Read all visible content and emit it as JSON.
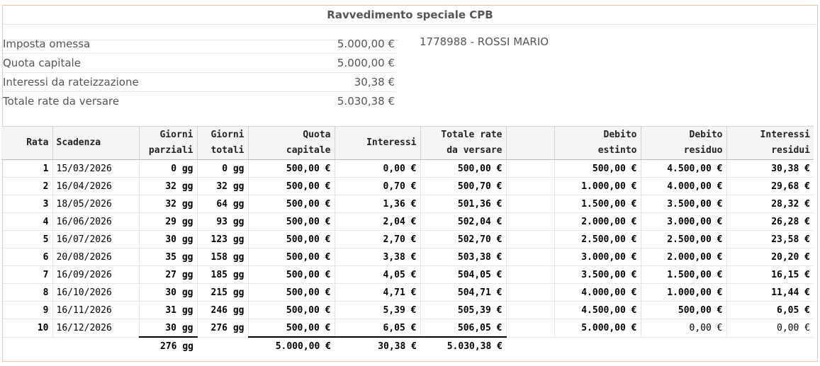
{
  "title": "Ravvedimento speciale CPB",
  "summary": [
    {
      "label": "Imposta omessa",
      "value": "5.000,00 €"
    },
    {
      "label": "Quota capitale",
      "value": "5.000,00 €"
    },
    {
      "label": "Interessi da rateizzazione",
      "value": "30,38 €"
    },
    {
      "label": "Totale rate da versare",
      "value": "5.030,38 €"
    }
  ],
  "taxpayer": "1778988 - ROSSI MARIO",
  "columns": {
    "rata": "Rata",
    "scadenza": "Scadenza",
    "giorni_parziali": [
      "Giorni",
      "parziali"
    ],
    "giorni_totali": [
      "Giorni",
      "totali"
    ],
    "quota_capitale": [
      "Quota",
      "capitale"
    ],
    "interessi": "Interessi",
    "totale_rate": [
      "Totale rate",
      "da versare"
    ],
    "debito_estinto": [
      "Debito",
      "estinto"
    ],
    "debito_residuo": [
      "Debito",
      "residuo"
    ],
    "interessi_residui": [
      "Interessi",
      "residui"
    ]
  },
  "rows": [
    {
      "rata": "1",
      "scadenza": "15/03/2026",
      "gp": "0 gg",
      "gt": "0 gg",
      "quota": "500,00 €",
      "interessi": "0,00 €",
      "totale": "500,00 €",
      "estinto": "500,00 €",
      "residuo": "4.500,00 €",
      "int_residui": "30,38 €"
    },
    {
      "rata": "2",
      "scadenza": "16/04/2026",
      "gp": "32 gg",
      "gt": "32 gg",
      "quota": "500,00 €",
      "interessi": "0,70 €",
      "totale": "500,70 €",
      "estinto": "1.000,00 €",
      "residuo": "4.000,00 €",
      "int_residui": "29,68 €"
    },
    {
      "rata": "3",
      "scadenza": "18/05/2026",
      "gp": "32 gg",
      "gt": "64 gg",
      "quota": "500,00 €",
      "interessi": "1,36 €",
      "totale": "501,36 €",
      "estinto": "1.500,00 €",
      "residuo": "3.500,00 €",
      "int_residui": "28,32 €"
    },
    {
      "rata": "4",
      "scadenza": "16/06/2026",
      "gp": "29 gg",
      "gt": "93 gg",
      "quota": "500,00 €",
      "interessi": "2,04 €",
      "totale": "502,04 €",
      "estinto": "2.000,00 €",
      "residuo": "3.000,00 €",
      "int_residui": "26,28 €"
    },
    {
      "rata": "5",
      "scadenza": "16/07/2026",
      "gp": "30 gg",
      "gt": "123 gg",
      "quota": "500,00 €",
      "interessi": "2,70 €",
      "totale": "502,70 €",
      "estinto": "2.500,00 €",
      "residuo": "2.500,00 €",
      "int_residui": "23,58 €"
    },
    {
      "rata": "6",
      "scadenza": "20/08/2026",
      "gp": "35 gg",
      "gt": "158 gg",
      "quota": "500,00 €",
      "interessi": "3,38 €",
      "totale": "503,38 €",
      "estinto": "3.000,00 €",
      "residuo": "2.000,00 €",
      "int_residui": "20,20 €"
    },
    {
      "rata": "7",
      "scadenza": "16/09/2026",
      "gp": "27 gg",
      "gt": "185 gg",
      "quota": "500,00 €",
      "interessi": "4,05 €",
      "totale": "504,05 €",
      "estinto": "3.500,00 €",
      "residuo": "1.500,00 €",
      "int_residui": "16,15 €"
    },
    {
      "rata": "8",
      "scadenza": "16/10/2026",
      "gp": "30 gg",
      "gt": "215 gg",
      "quota": "500,00 €",
      "interessi": "4,71 €",
      "totale": "504,71 €",
      "estinto": "4.000,00 €",
      "residuo": "1.000,00 €",
      "int_residui": "11,44 €"
    },
    {
      "rata": "9",
      "scadenza": "16/11/2026",
      "gp": "31 gg",
      "gt": "246 gg",
      "quota": "500,00 €",
      "interessi": "5,39 €",
      "totale": "505,39 €",
      "estinto": "4.500,00 €",
      "residuo": "500,00 €",
      "int_residui": "6,05 €"
    },
    {
      "rata": "10",
      "scadenza": "16/12/2026",
      "gp": "30 gg",
      "gt": "276 gg",
      "quota": "500,00 €",
      "interessi": "6,05 €",
      "totale": "506,05 €",
      "estinto": "5.000,00 €",
      "residuo": "0,00 €",
      "int_residui": "0,00 €"
    }
  ],
  "totals": {
    "giorni": "276 gg",
    "quota": "5.000,00 €",
    "interessi": "30,38 €",
    "totale": "5.030,38 €"
  }
}
